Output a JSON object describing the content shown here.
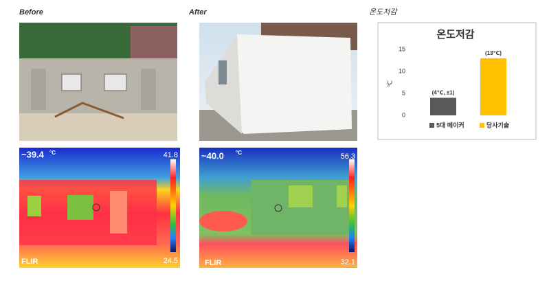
{
  "labels": {
    "before": "Before",
    "after": "After",
    "reduction": "온도저감"
  },
  "thermal_before": {
    "spot": "~39.4",
    "unit": "°C",
    "max": "41.8",
    "min": "24.5",
    "brand": "FLIR"
  },
  "thermal_after": {
    "spot": "~40.0",
    "unit": "°C",
    "max": "56.3",
    "min": "32.1",
    "brand": "FLIR"
  },
  "chart_data": {
    "type": "bar",
    "title": "온도저감",
    "y_label": "℃",
    "categories": [
      "5대 메이커",
      "당사기술"
    ],
    "values": [
      4,
      13
    ],
    "value_labels": [
      "(4℃, ±1)",
      "(13℃)"
    ],
    "colors": [
      "#595959",
      "#ffc000"
    ],
    "ylim": [
      0,
      15
    ],
    "yticks": [
      0,
      5,
      10,
      15
    ],
    "grid": false
  }
}
